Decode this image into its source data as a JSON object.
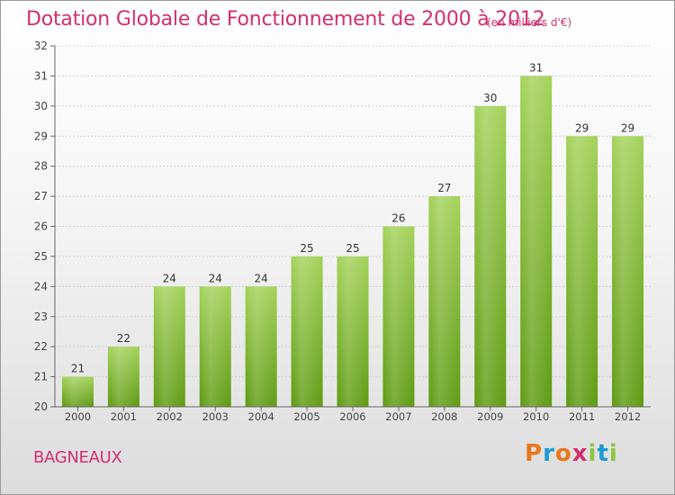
{
  "header": {
    "title": "Dotation Globale de Fonctionnement de 2000 à 2012",
    "unit": "(en milliers d'€)"
  },
  "footer": {
    "commune": "BAGNEAUX",
    "brand": "Proxiti"
  },
  "colors": {
    "title": "#d2306e",
    "bar_top": "#a3d25a",
    "bar_bottom": "#5e9a12",
    "grid": "#cfcfcf",
    "axis": "#666666",
    "brand_letters": [
      "#e8771c",
      "#1e9ad6",
      "#e8771c",
      "#d2306e",
      "#8cc63f",
      "#1e9ad6",
      "#8cc63f"
    ]
  },
  "chart_data": {
    "type": "bar",
    "title": "Dotation Globale de Fonctionnement de 2000 à 2012",
    "subtitle": "(en milliers d'€)",
    "categories": [
      "2000",
      "2001",
      "2002",
      "2003",
      "2004",
      "2005",
      "2006",
      "2007",
      "2008",
      "2009",
      "2010",
      "2011",
      "2012"
    ],
    "values": [
      21,
      22,
      24,
      24,
      24,
      25,
      25,
      26,
      27,
      30,
      31,
      29,
      29
    ],
    "ylim": [
      20,
      32
    ],
    "yticks": [
      20,
      21,
      22,
      23,
      24,
      25,
      26,
      27,
      28,
      29,
      30,
      31,
      32
    ],
    "grid": true,
    "legend": "none"
  }
}
